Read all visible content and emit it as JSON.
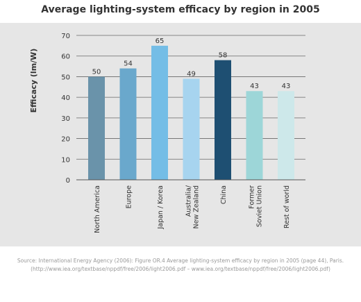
{
  "source_lines": [
    "Source: International Energy Agency (2006): Figure OR.4 Average lighting-system efficacy by region in 2005 (page 44), Paris.",
    "(http://www.iea.org/textbase/nppdf/free/2006/light2006.pdf – www.iea.org/textbase/nppdf/free/2006/light2006.pdf)"
  ],
  "chart_data": {
    "type": "bar",
    "title": "Average lighting-system efficacy by region in 2005",
    "xlabel": "",
    "ylabel": "Efficacy (lm/W)",
    "ylim": [
      0,
      70
    ],
    "yticks": [
      0,
      10,
      20,
      30,
      40,
      50,
      60,
      70
    ],
    "grid": true,
    "categories": [
      [
        "North America"
      ],
      [
        "Europe"
      ],
      [
        "Japan / Korea"
      ],
      [
        "Australia/",
        "New Zealand"
      ],
      [
        "China"
      ],
      [
        "Former",
        "Soviet Union"
      ],
      [
        "Rest of world"
      ]
    ],
    "values": [
      50,
      54,
      65,
      49,
      58,
      43,
      43
    ],
    "colors": [
      "#6a93aa",
      "#6aa8cc",
      "#74bde6",
      "#a7d4ef",
      "#1e4f72",
      "#9dd6d8",
      "#cde8ea"
    ]
  }
}
